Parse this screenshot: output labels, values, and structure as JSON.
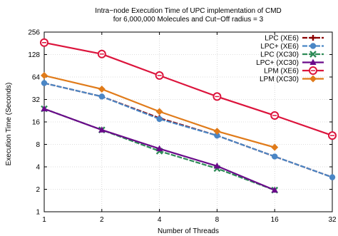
{
  "chart_data": {
    "type": "line",
    "title_lines": [
      "Intra−node Execution Time of UPC implementation of CMD",
      "for 6,000,000 Molecules and Cut−Off radius = 3"
    ],
    "xlabel": "Number of Threads",
    "ylabel": "Execution Time (Seconds)",
    "x_scale": "log2",
    "y_scale": "log2",
    "xlim": [
      1,
      32
    ],
    "ylim": [
      1,
      256
    ],
    "x_ticks": [
      1,
      2,
      4,
      8,
      16,
      32
    ],
    "y_ticks": [
      1,
      2,
      4,
      8,
      16,
      32,
      64,
      128,
      256
    ],
    "grid": true,
    "legend_position": "top-right",
    "series": [
      {
        "name": "LPC (XE6)",
        "color": "#8b0000",
        "marker": "plus",
        "dashed": true,
        "x": [
          1,
          2,
          4,
          8,
          16,
          32
        ],
        "y": [
          53,
          35,
          18,
          10.5,
          5.5,
          2.9
        ]
      },
      {
        "name": "LPC+ (XE6)",
        "color": "#4a86c5",
        "marker": "circle",
        "dashed": true,
        "x": [
          1,
          2,
          4,
          8,
          16,
          32
        ],
        "y": [
          53,
          35,
          17.5,
          10.5,
          5.5,
          2.9
        ]
      },
      {
        "name": "LPC (XC30)",
        "color": "#2e8b57",
        "marker": "x",
        "dashed": true,
        "x": [
          1,
          2,
          4,
          8,
          16
        ],
        "y": [
          24,
          12.5,
          6.5,
          3.8,
          1.95
        ]
      },
      {
        "name": "LPC+ (XC30)",
        "color": "#6a0a8a",
        "marker": "triangle",
        "dashed": false,
        "x": [
          1,
          2,
          4,
          8,
          16
        ],
        "y": [
          24,
          12.5,
          7,
          4.1,
          1.95
        ]
      },
      {
        "name": "LPM (XE6)",
        "color": "#dc143c",
        "marker": "circle-open",
        "dashed": false,
        "x": [
          1,
          2,
          4,
          8,
          16,
          32
        ],
        "y": [
          185,
          130,
          67,
          35,
          19.5,
          10.5
        ]
      },
      {
        "name": "LPM (XC30)",
        "color": "#e07b1a",
        "marker": "diamond",
        "dashed": false,
        "x": [
          1,
          2,
          4,
          8,
          16
        ],
        "y": [
          67,
          44,
          22,
          12,
          7.3
        ]
      }
    ]
  }
}
